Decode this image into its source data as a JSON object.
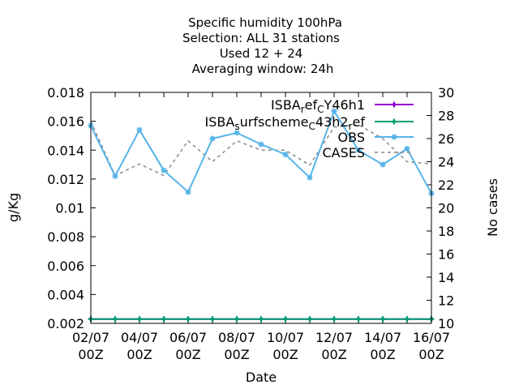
{
  "chart_data": {
    "type": "line",
    "title_lines": [
      "Specific humidity 100hPa",
      "Selection: ALL      31 stations",
      "Used  12 + 24",
      "Averaging window: 24h"
    ],
    "xlabel": "Date",
    "ylabel": "g/Kg",
    "y2label": "No cases",
    "ylim": [
      0.002,
      0.018
    ],
    "y2lim": [
      10,
      30
    ],
    "yticks": [
      "0.002",
      "0.004",
      "0.006",
      "0.008",
      "0.01",
      "0.012",
      "0.014",
      "0.016",
      "0.018"
    ],
    "y2ticks": [
      "10",
      "12",
      "14",
      "16",
      "18",
      "20",
      "22",
      "24",
      "26",
      "28",
      "30"
    ],
    "xticks": [
      {
        "top": "02/07",
        "bottom": "00Z"
      },
      {
        "top": "04/07",
        "bottom": "00Z"
      },
      {
        "top": "06/07",
        "bottom": "00Z"
      },
      {
        "top": "08/07",
        "bottom": "00Z"
      },
      {
        "top": "10/07",
        "bottom": "00Z"
      },
      {
        "top": "12/07",
        "bottom": "00Z"
      },
      {
        "top": "14/07",
        "bottom": "00Z"
      },
      {
        "top": "16/07",
        "bottom": "00Z"
      }
    ],
    "x": [
      "02/07 00Z",
      "03/07 00Z",
      "04/07 00Z",
      "05/07 00Z",
      "06/07 00Z",
      "07/07 00Z",
      "08/07 00Z",
      "09/07 00Z",
      "10/07 00Z",
      "11/07 00Z",
      "12/07 00Z",
      "13/07 00Z",
      "14/07 00Z",
      "15/07 00Z",
      "16/07 00Z"
    ],
    "legend_position": "top-right",
    "series": [
      {
        "name": "ISBA_ref_CY46h1",
        "label_parts": [
          [
            "ISBA",
            ""
          ],
          [
            "r",
            "sub"
          ],
          [
            "ef",
            ""
          ],
          [
            "C",
            "sub"
          ],
          [
            "Y46h1",
            ""
          ]
        ],
        "color": "#9400d3",
        "axis": "y",
        "marker": "plus",
        "values": [
          0.0023,
          0.0023,
          0.0023,
          0.0023,
          0.0023,
          0.0023,
          0.0023,
          0.0023,
          0.0023,
          0.0023,
          0.0023,
          0.0023,
          0.0023,
          0.0023,
          0.0023
        ]
      },
      {
        "name": "ISBA_surfscheme_C43h2_ref",
        "label_parts": [
          [
            "ISBA",
            ""
          ],
          [
            "s",
            "sub"
          ],
          [
            "urfscheme",
            ""
          ],
          [
            "C",
            "sub"
          ],
          [
            "43h2",
            ""
          ],
          [
            "r",
            "sub"
          ],
          [
            "ef",
            ""
          ]
        ],
        "color": "#009e73",
        "axis": "y",
        "marker": "plus",
        "values": [
          0.0023,
          0.0023,
          0.0023,
          0.0023,
          0.0023,
          0.0023,
          0.0023,
          0.0023,
          0.0023,
          0.0023,
          0.0023,
          0.0023,
          0.0023,
          0.0023,
          0.0023
        ]
      },
      {
        "name": "OBS",
        "label_parts": [
          [
            "OBS",
            ""
          ]
        ],
        "color": "#56b4e9",
        "axis": "y",
        "marker": "star",
        "values": [
          0.0157,
          0.0122,
          0.0154,
          0.0126,
          0.0111,
          0.0148,
          0.0152,
          0.0144,
          0.0137,
          0.0121,
          0.0167,
          0.014,
          0.013,
          0.0141,
          0.011
        ]
      },
      {
        "name": "CASES",
        "label_parts": [
          [
            "CASES",
            ""
          ]
        ],
        "color": "#888888",
        "axis": "y2",
        "marker": "none",
        "dashed": true,
        "values": [
          27.5,
          22.8,
          23.8,
          22.8,
          25.8,
          24.0,
          25.8,
          25.0,
          25.0,
          23.7,
          27.0,
          27.2,
          26.0,
          24.0,
          23.8
        ]
      }
    ]
  }
}
